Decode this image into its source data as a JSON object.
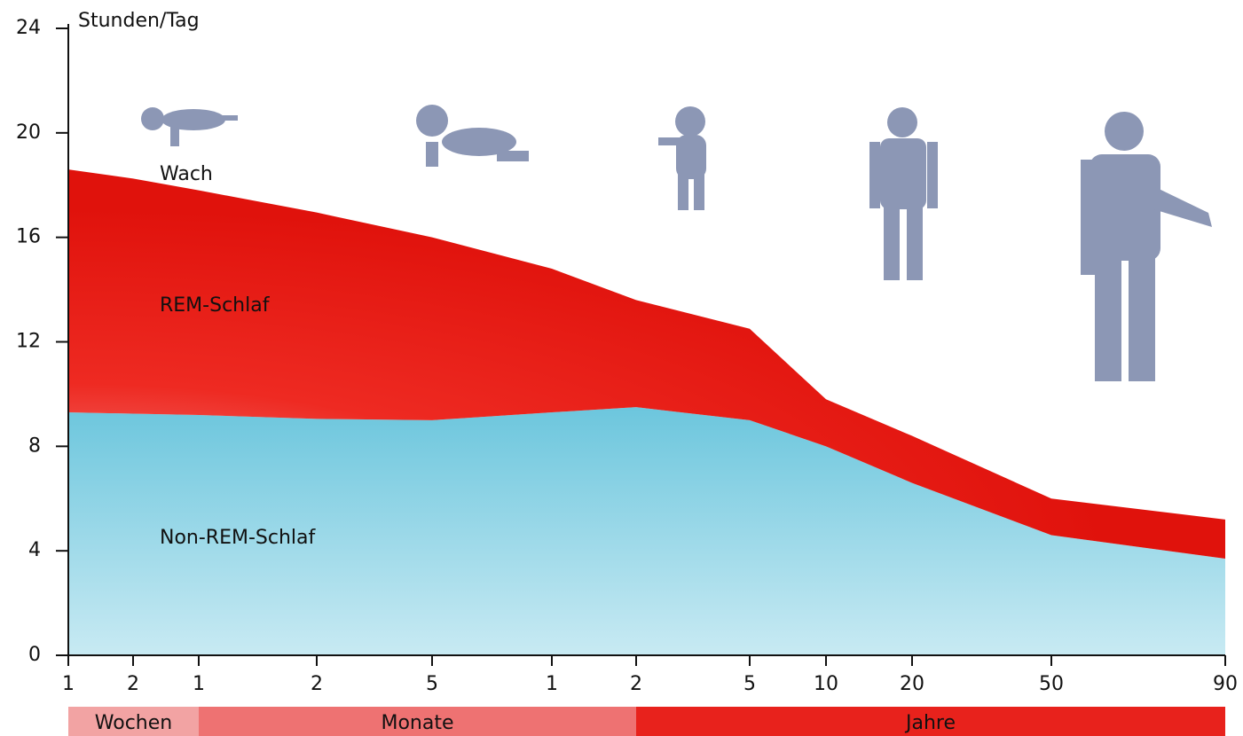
{
  "chart_data": {
    "type": "area",
    "stacked": true,
    "y_label": "Stunden/Tag",
    "categories": [
      "1",
      "2",
      "1",
      "2",
      "5",
      "1",
      "2",
      "5",
      "10",
      "20",
      "50",
      "90"
    ],
    "groups": [
      {
        "label": "Wochen",
        "count": 2,
        "color": "#f2a3a3"
      },
      {
        "label": "Monate",
        "count": 4,
        "color": "#ee7272"
      },
      {
        "label": "Jahre",
        "count": 6,
        "color": "#e8221c"
      }
    ],
    "series": [
      {
        "name": "Non-REM-Schlaf",
        "color": "#7fcde0",
        "values": [
          9.3,
          9.25,
          9.2,
          9.05,
          9.0,
          9.3,
          9.5,
          9.0,
          8.0,
          6.6,
          4.6,
          3.7
        ]
      },
      {
        "name": "REM-Schlaf",
        "color": "#ec1c14",
        "values": [
          9.3,
          9.0,
          8.6,
          7.9,
          7.0,
          5.5,
          4.1,
          3.5,
          1.8,
          1.8,
          1.4,
          1.5
        ]
      }
    ],
    "annotations": [
      "Wach"
    ],
    "ylim": [
      0,
      24
    ],
    "yticks": [
      0,
      4,
      8,
      12,
      16,
      20,
      24
    ]
  }
}
